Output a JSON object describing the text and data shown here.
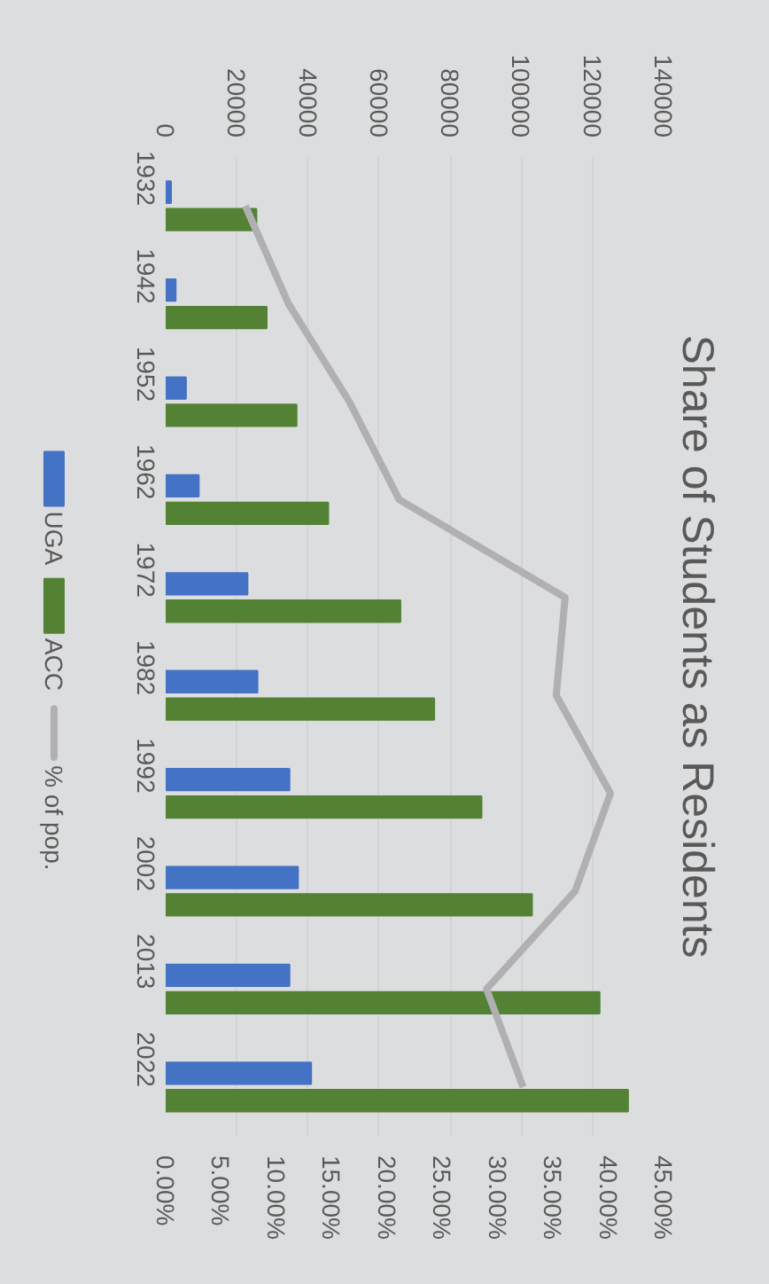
{
  "chart_data": {
    "type": "bar",
    "orientation": "horizontal",
    "title": "Share of Students as Residents",
    "categories": [
      "1932",
      "1942",
      "1952",
      "1962",
      "1972",
      "1982",
      "1992",
      "2002",
      "2013",
      "2022"
    ],
    "series": [
      {
        "name": "UGA",
        "color": "#4472c4",
        "values": [
          1500,
          2800,
          5700,
          9300,
          23000,
          25800,
          34800,
          37200,
          34800,
          40900
        ]
      },
      {
        "name": "ACC",
        "color": "#548235",
        "values": [
          25500,
          28400,
          36800,
          45700,
          66000,
          75500,
          88800,
          103000,
          122000,
          130000
        ]
      },
      {
        "name": "% of pop.",
        "type": "line",
        "axis": "x2",
        "color": "#b0b0b2",
        "values": [
          7.2,
          11.1,
          16.6,
          21.1,
          36.1,
          35.3,
          40.2,
          37.0,
          29.0,
          32.3
        ]
      }
    ],
    "xlim": [
      0,
      140000
    ],
    "xticks": [
      0,
      20000,
      40000,
      60000,
      80000,
      100000,
      120000,
      140000
    ],
    "x2lim": [
      0,
      45
    ],
    "x2ticks": [
      {
        "value": 0,
        "label": "0.00%"
      },
      {
        "value": 5,
        "label": "5.00%"
      },
      {
        "value": 10,
        "label": "10.00%"
      },
      {
        "value": 15,
        "label": "15.00%"
      },
      {
        "value": 20,
        "label": "20.00%"
      },
      {
        "value": 25,
        "label": "25.00%"
      },
      {
        "value": 30,
        "label": "30.00%"
      },
      {
        "value": 35,
        "label": "35.00%"
      },
      {
        "value": 40,
        "label": "40.00%"
      },
      {
        "value": 45,
        "label": "45.00%"
      }
    ],
    "grid": "x",
    "legend": "left",
    "line_style": "solid"
  }
}
